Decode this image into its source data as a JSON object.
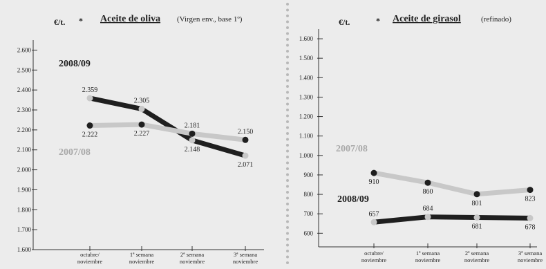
{
  "charts": [
    {
      "unit": "€/t.",
      "unit_mark": "*",
      "title": "Aceite de oliva",
      "subtitle": "(Virgen env., base 1º)"
    },
    {
      "unit": "€/t.",
      "unit_mark": "*",
      "title": "Aceite de girasol",
      "subtitle": "(refinado)"
    }
  ],
  "colors": {
    "background": "#ececec",
    "series_dark": "#1f1f1f",
    "series_light": "#c8c8c8",
    "label_light": "#a8a8a8",
    "divider_dots": "#b8b8b8"
  },
  "chart_data": [
    {
      "type": "line",
      "title": "Aceite de oliva",
      "subtitle": "(Virgen env., base 1º)",
      "ylabel": "€/t.",
      "categories": [
        [
          "octubre/",
          "noviembre"
        ],
        [
          "1ª semana",
          "noviembre"
        ],
        [
          "2ª semana",
          "noviembre"
        ],
        [
          "3ª semana",
          "noviembre"
        ]
      ],
      "yticks": [
        1600,
        1700,
        1800,
        1900,
        2000,
        2100,
        2200,
        2300,
        2400,
        2500,
        2600
      ],
      "ytick_labels": [
        "1.600",
        "1.700",
        "1.800",
        "1.900",
        "2.000",
        "2.100",
        "2.200",
        "2.300",
        "2.400",
        "2.500",
        "2.600"
      ],
      "ylim": [
        1600,
        2650
      ],
      "series": [
        {
          "name": "2008/09",
          "color": "#1f1f1f",
          "line_color": "#1f1f1f",
          "dot_color": "#c8c8c8",
          "values": [
            2359,
            2305,
            2148,
            2071
          ],
          "value_labels": [
            "2.359",
            "2.305",
            "2.148",
            "2.071"
          ],
          "label_pos": [
            "above",
            "above",
            "below",
            "below"
          ]
        },
        {
          "name": "2007/08",
          "color": "#c8c8c8",
          "line_color": "#c8c8c8",
          "dot_color": "#1f1f1f",
          "values": [
            2222,
            2227,
            2181,
            2150
          ],
          "value_labels": [
            "2.222",
            "2.227",
            "2.181",
            "2.150"
          ],
          "label_pos": [
            "below",
            "below",
            "above",
            "above"
          ]
        }
      ],
      "legend": [
        {
          "text": "2008/09",
          "color": "#1f1f1f"
        },
        {
          "text": "2007/08",
          "color": "#a8a8a8"
        }
      ]
    },
    {
      "type": "line",
      "title": "Aceite de girasol",
      "subtitle": "(refinado)",
      "ylabel": "€/t.",
      "categories": [
        [
          "octubre/",
          "noviembre"
        ],
        [
          "1ª semana",
          "noviembre"
        ],
        [
          "2ª semana",
          "noviembre"
        ],
        [
          "3ª semana",
          "noviembre"
        ]
      ],
      "yticks": [
        600,
        700,
        800,
        900,
        1000,
        1100,
        1200,
        1300,
        1400,
        1500,
        1600
      ],
      "ytick_labels": [
        "600",
        "700",
        "800",
        "900",
        "1.000",
        "1.100",
        "1.200",
        "1.300",
        "1.400",
        "1.500",
        "1.600"
      ],
      "ylim": [
        530,
        1650
      ],
      "series": [
        {
          "name": "2007/08",
          "color": "#c8c8c8",
          "line_color": "#c8c8c8",
          "dot_color": "#1f1f1f",
          "values": [
            910,
            860,
            801,
            823
          ],
          "value_labels": [
            "910",
            "860",
            "801",
            "823"
          ],
          "label_pos": [
            "below",
            "below",
            "below",
            "below"
          ]
        },
        {
          "name": "2008/09",
          "color": "#1f1f1f",
          "line_color": "#1f1f1f",
          "dot_color": "#c8c8c8",
          "values": [
            657,
            684,
            681,
            678
          ],
          "value_labels": [
            "657",
            "684",
            "681",
            "678"
          ],
          "label_pos": [
            "above",
            "above",
            "below",
            "below"
          ]
        }
      ],
      "legend": [
        {
          "text": "2007/08",
          "color": "#a8a8a8"
        },
        {
          "text": "2008/09",
          "color": "#1f1f1f"
        }
      ]
    }
  ]
}
